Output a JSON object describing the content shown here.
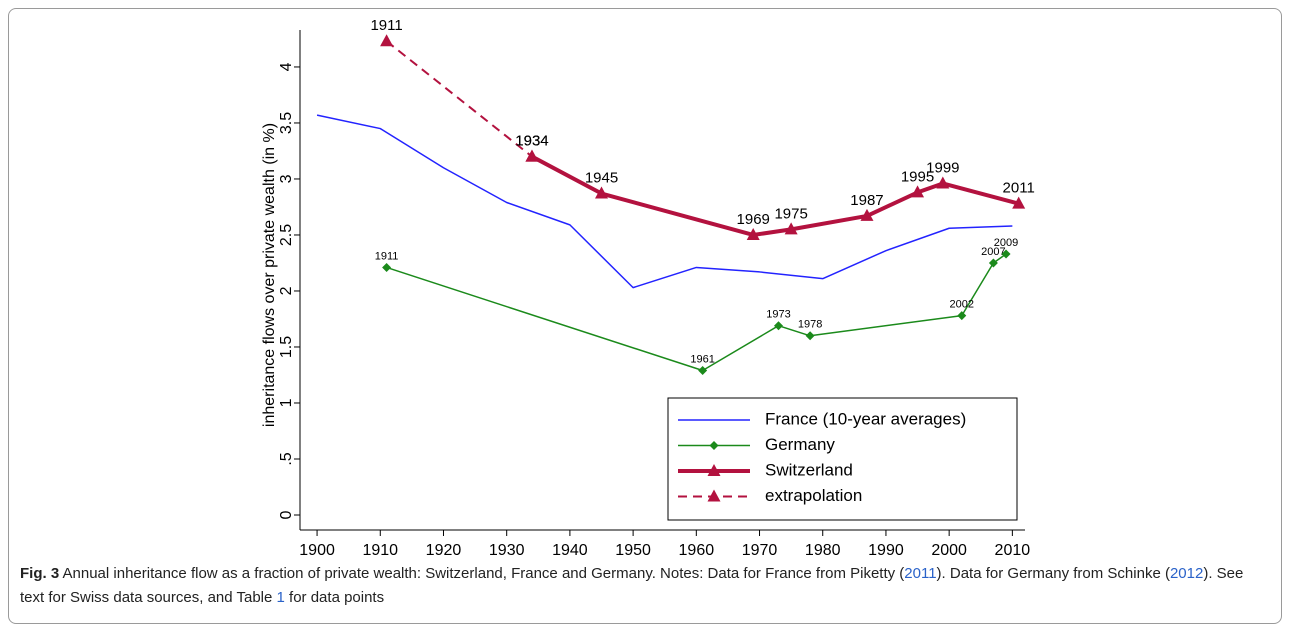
{
  "chart_data": {
    "type": "line",
    "y_label": "inheritance flows over private wealth (in %)",
    "xlim": [
      1897.3,
      2012
    ],
    "ylim": [
      -0.134,
      4.33
    ],
    "xticks": [
      1900,
      1910,
      1920,
      1930,
      1940,
      1950,
      1960,
      1970,
      1980,
      1990,
      2000,
      2010
    ],
    "yticks": [
      0,
      {
        "value": 0.5,
        "label": ".5"
      },
      1,
      1.5,
      2,
      2.5,
      3,
      3.5,
      4
    ],
    "legend": "bottom-right",
    "series": [
      {
        "name": "France (10-year averages)",
        "color": "#2323ff",
        "marker": "none",
        "dash": false,
        "width": 1.5,
        "x": [
          1900,
          1910,
          1920,
          1930,
          1940,
          1950,
          1960,
          1970,
          1980,
          1990,
          2000,
          2010
        ],
        "values": [
          3.57,
          3.45,
          3.1,
          2.79,
          2.59,
          2.03,
          2.21,
          2.17,
          2.11,
          2.36,
          2.56,
          2.58
        ]
      },
      {
        "name": "Germany",
        "color": "#1b8a1b",
        "marker": "diamond",
        "dash": false,
        "width": 1.5,
        "point_labels": true,
        "x": [
          1911,
          1961,
          1973,
          1978,
          2002,
          2007,
          2009
        ],
        "values": [
          2.21,
          1.29,
          1.69,
          1.6,
          1.78,
          2.25,
          2.33
        ]
      },
      {
        "name": "Switzerland",
        "color": "#b3123f",
        "marker": "triangle",
        "dash": false,
        "width": 4,
        "point_labels": true,
        "x": [
          1934,
          1945,
          1969,
          1975,
          1987,
          1995,
          1999,
          2011
        ],
        "values": [
          3.2,
          2.87,
          2.5,
          2.55,
          2.67,
          2.88,
          2.96,
          2.78
        ]
      },
      {
        "name": "extrapolation",
        "color": "#b3123f",
        "marker": "triangle",
        "dash": true,
        "width": 2,
        "point_labels": true,
        "x": [
          1911,
          1934
        ],
        "values": [
          4.23,
          3.2
        ]
      }
    ]
  },
  "caption": {
    "label": "Fig. 3",
    "parts": [
      "Annual inheritance flow as a fraction of private wealth: Switzerland, France and Germany. Notes: Data for France from Piketty (",
      "2011",
      "). Data for Germany from Schinke (",
      "2012",
      "). See text for Swiss data sources, and Table ",
      "1",
      " for data points"
    ]
  }
}
